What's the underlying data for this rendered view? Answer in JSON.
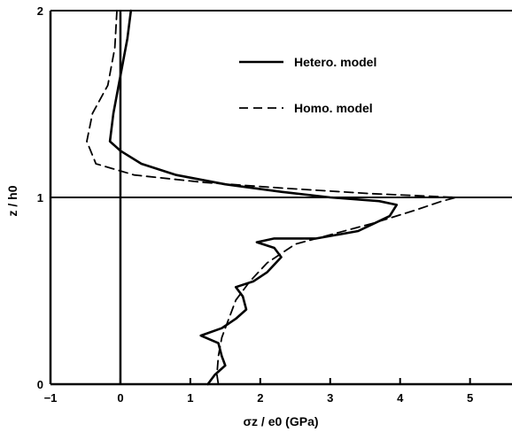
{
  "chart_data": {
    "type": "line",
    "title": "",
    "xlabel": "σz / e0 (GPa)",
    "ylabel": "z / h0",
    "xlim": [
      -1,
      5.6
    ],
    "ylim": [
      0,
      2
    ],
    "x_ticks": [
      -1,
      0,
      1,
      2,
      3,
      4,
      5
    ],
    "y_ticks": [
      0,
      1,
      2
    ],
    "grid": false,
    "legend_position": "top-right",
    "reference_lines": [
      {
        "orientation": "vertical",
        "value": 0
      },
      {
        "orientation": "horizontal",
        "value": 1
      }
    ],
    "series": [
      {
        "name": "Hetero. model",
        "style": "solid",
        "color": "#000000",
        "points": [
          [
            0.15,
            2.0
          ],
          [
            0.1,
            1.85
          ],
          [
            0.0,
            1.65
          ],
          [
            -0.1,
            1.45
          ],
          [
            -0.15,
            1.3
          ],
          [
            0.0,
            1.25
          ],
          [
            0.3,
            1.18
          ],
          [
            0.8,
            1.12
          ],
          [
            1.5,
            1.07
          ],
          [
            2.3,
            1.03
          ],
          [
            3.0,
            1.0
          ],
          [
            3.7,
            0.98
          ],
          [
            3.95,
            0.96
          ],
          [
            3.85,
            0.9
          ],
          [
            3.4,
            0.82
          ],
          [
            2.8,
            0.78
          ],
          [
            2.2,
            0.78
          ],
          [
            1.95,
            0.76
          ],
          [
            2.2,
            0.73
          ],
          [
            2.3,
            0.68
          ],
          [
            2.1,
            0.6
          ],
          [
            1.9,
            0.55
          ],
          [
            1.65,
            0.52
          ],
          [
            1.75,
            0.47
          ],
          [
            1.8,
            0.4
          ],
          [
            1.65,
            0.35
          ],
          [
            1.45,
            0.3
          ],
          [
            1.15,
            0.26
          ],
          [
            1.4,
            0.22
          ],
          [
            1.45,
            0.15
          ],
          [
            1.5,
            0.1
          ],
          [
            1.35,
            0.05
          ],
          [
            1.25,
            0.0
          ]
        ]
      },
      {
        "name": "Homo. model",
        "style": "dashed",
        "color": "#000000",
        "points": [
          [
            -0.05,
            2.0
          ],
          [
            -0.08,
            1.8
          ],
          [
            -0.18,
            1.6
          ],
          [
            -0.4,
            1.45
          ],
          [
            -0.48,
            1.3
          ],
          [
            -0.35,
            1.18
          ],
          [
            0.2,
            1.12
          ],
          [
            1.2,
            1.08
          ],
          [
            2.3,
            1.05
          ],
          [
            3.6,
            1.02
          ],
          [
            4.8,
            1.0
          ],
          [
            4.6,
            0.98
          ],
          [
            4.2,
            0.93
          ],
          [
            3.6,
            0.86
          ],
          [
            3.0,
            0.8
          ],
          [
            2.5,
            0.75
          ],
          [
            2.1,
            0.65
          ],
          [
            1.85,
            0.55
          ],
          [
            1.65,
            0.45
          ],
          [
            1.55,
            0.35
          ],
          [
            1.45,
            0.25
          ],
          [
            1.4,
            0.15
          ],
          [
            1.38,
            0.05
          ],
          [
            1.4,
            0.0
          ]
        ]
      }
    ]
  }
}
